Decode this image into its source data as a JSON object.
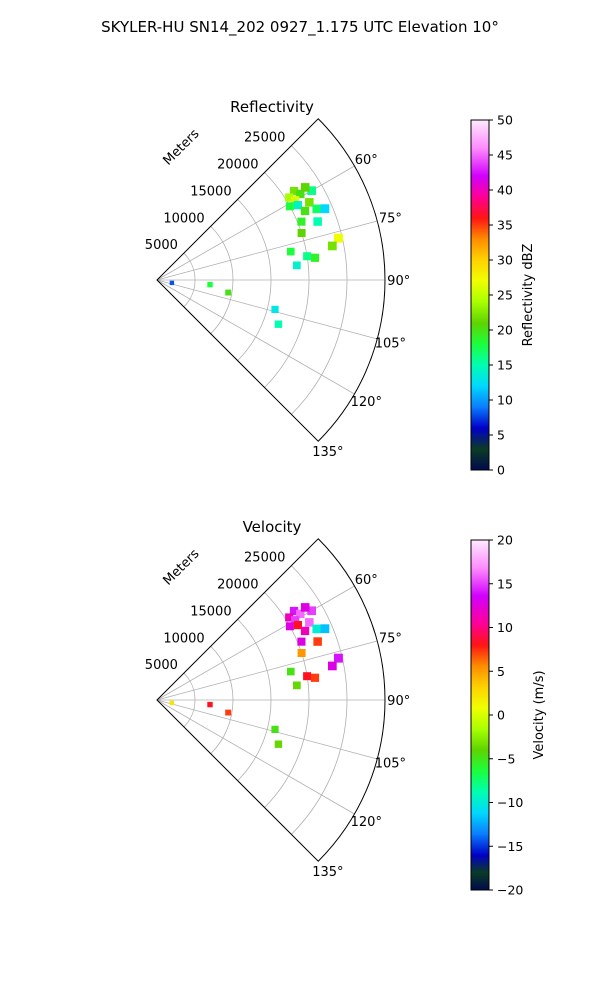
{
  "suptitle": "SKYLER-HU  SN14_202  0927_1.175 UTC Elevation 10°",
  "chart_data": [
    {
      "type": "polar-sector",
      "title": "Reflectivity",
      "radial_label": "Meters",
      "radial_ticks": [
        "5000",
        "10000",
        "15000",
        "20000",
        "25000"
      ],
      "radial_values": [
        5000,
        10000,
        15000,
        20000,
        25000
      ],
      "angle_ticks": [
        "60°",
        "75°",
        "90°",
        "105°",
        "120°",
        "135°"
      ],
      "angle_values": [
        60,
        75,
        90,
        105,
        120,
        135
      ],
      "theta_range": [
        45,
        135
      ],
      "r_range": [
        0,
        30000
      ],
      "colorbar": {
        "label": "Reflectivity dBZ",
        "ticks": [
          "0",
          "5",
          "10",
          "15",
          "20",
          "25",
          "30",
          "35",
          "40",
          "45",
          "50"
        ],
        "range": [
          0,
          50
        ]
      },
      "cells": [
        {
          "az": 57,
          "r": 21500,
          "v": 22
        },
        {
          "az": 58,
          "r": 20500,
          "v": 24
        },
        {
          "az": 59,
          "r": 22000,
          "v": 20
        },
        {
          "az": 60,
          "r": 21000,
          "v": 26
        },
        {
          "az": 61,
          "r": 20000,
          "v": 18
        },
        {
          "az": 62,
          "r": 21000,
          "v": 14
        },
        {
          "az": 60,
          "r": 23500,
          "v": 16
        },
        {
          "az": 58,
          "r": 23000,
          "v": 21
        },
        {
          "az": 63,
          "r": 22500,
          "v": 22
        },
        {
          "az": 65,
          "r": 21500,
          "v": 20
        },
        {
          "az": 66,
          "r": 23000,
          "v": 17
        },
        {
          "az": 68,
          "r": 20500,
          "v": 19
        },
        {
          "az": 67,
          "r": 24000,
          "v": 12
        },
        {
          "az": 70,
          "r": 22500,
          "v": 15
        },
        {
          "az": 72,
          "r": 20000,
          "v": 21
        },
        {
          "az": 77,
          "r": 24500,
          "v": 27
        },
        {
          "az": 79,
          "r": 23500,
          "v": 22
        },
        {
          "az": 81,
          "r": 20000,
          "v": 16
        },
        {
          "az": 82,
          "r": 21000,
          "v": 19
        },
        {
          "az": 78,
          "r": 18000,
          "v": 18
        },
        {
          "az": 84,
          "r": 18500,
          "v": 14
        },
        {
          "az": 104,
          "r": 16000,
          "v": 13
        },
        {
          "az": 110,
          "r": 17000,
          "v": 15
        },
        {
          "az": 95,
          "r": 7000,
          "v": 18
        },
        {
          "az": 100,
          "r": 9500,
          "v": 20
        },
        {
          "az": 101,
          "r": 2000,
          "v": 8
        }
      ]
    },
    {
      "type": "polar-sector",
      "title": "Velocity",
      "radial_label": "Meters",
      "radial_ticks": [
        "5000",
        "10000",
        "15000",
        "20000",
        "25000"
      ],
      "radial_values": [
        5000,
        10000,
        15000,
        20000,
        25000
      ],
      "angle_ticks": [
        "60°",
        "75°",
        "90°",
        "105°",
        "120°",
        "135°"
      ],
      "angle_values": [
        60,
        75,
        90,
        105,
        120,
        135
      ],
      "theta_range": [
        45,
        135
      ],
      "r_range": [
        0,
        30000
      ],
      "colorbar": {
        "label": "Velocity (m/s)",
        "ticks": [
          "−20",
          "−15",
          "−10",
          "−5",
          "0",
          "5",
          "10",
          "15",
          "20"
        ],
        "range": [
          -20,
          20
        ]
      },
      "cells": [
        {
          "az": 57,
          "r": 21500,
          "v": 14
        },
        {
          "az": 58,
          "r": 20500,
          "v": 12
        },
        {
          "az": 59,
          "r": 22000,
          "v": 16
        },
        {
          "az": 60,
          "r": 21000,
          "v": 15
        },
        {
          "az": 61,
          "r": 20000,
          "v": 13
        },
        {
          "az": 62,
          "r": 21000,
          "v": 9
        },
        {
          "az": 60,
          "r": 23500,
          "v": 15
        },
        {
          "az": 58,
          "r": 23000,
          "v": 13
        },
        {
          "az": 63,
          "r": 22500,
          "v": 16
        },
        {
          "az": 65,
          "r": 21500,
          "v": 12
        },
        {
          "az": 66,
          "r": 23000,
          "v": -9
        },
        {
          "az": 68,
          "r": 20500,
          "v": 13
        },
        {
          "az": 67,
          "r": 24000,
          "v": -11
        },
        {
          "az": 70,
          "r": 22500,
          "v": 8
        },
        {
          "az": 72,
          "r": 20000,
          "v": 6
        },
        {
          "az": 77,
          "r": 24500,
          "v": 14
        },
        {
          "az": 79,
          "r": 23500,
          "v": 13
        },
        {
          "az": 81,
          "r": 20000,
          "v": 9
        },
        {
          "az": 82,
          "r": 21000,
          "v": 8
        },
        {
          "az": 78,
          "r": 18000,
          "v": -4
        },
        {
          "az": 84,
          "r": 18500,
          "v": -3
        },
        {
          "az": 104,
          "r": 16000,
          "v": -4
        },
        {
          "az": 110,
          "r": 17000,
          "v": -3
        },
        {
          "az": 95,
          "r": 7000,
          "v": 9
        },
        {
          "az": 100,
          "r": 9500,
          "v": 8
        },
        {
          "az": 101,
          "r": 2000,
          "v": 3
        }
      ]
    }
  ]
}
